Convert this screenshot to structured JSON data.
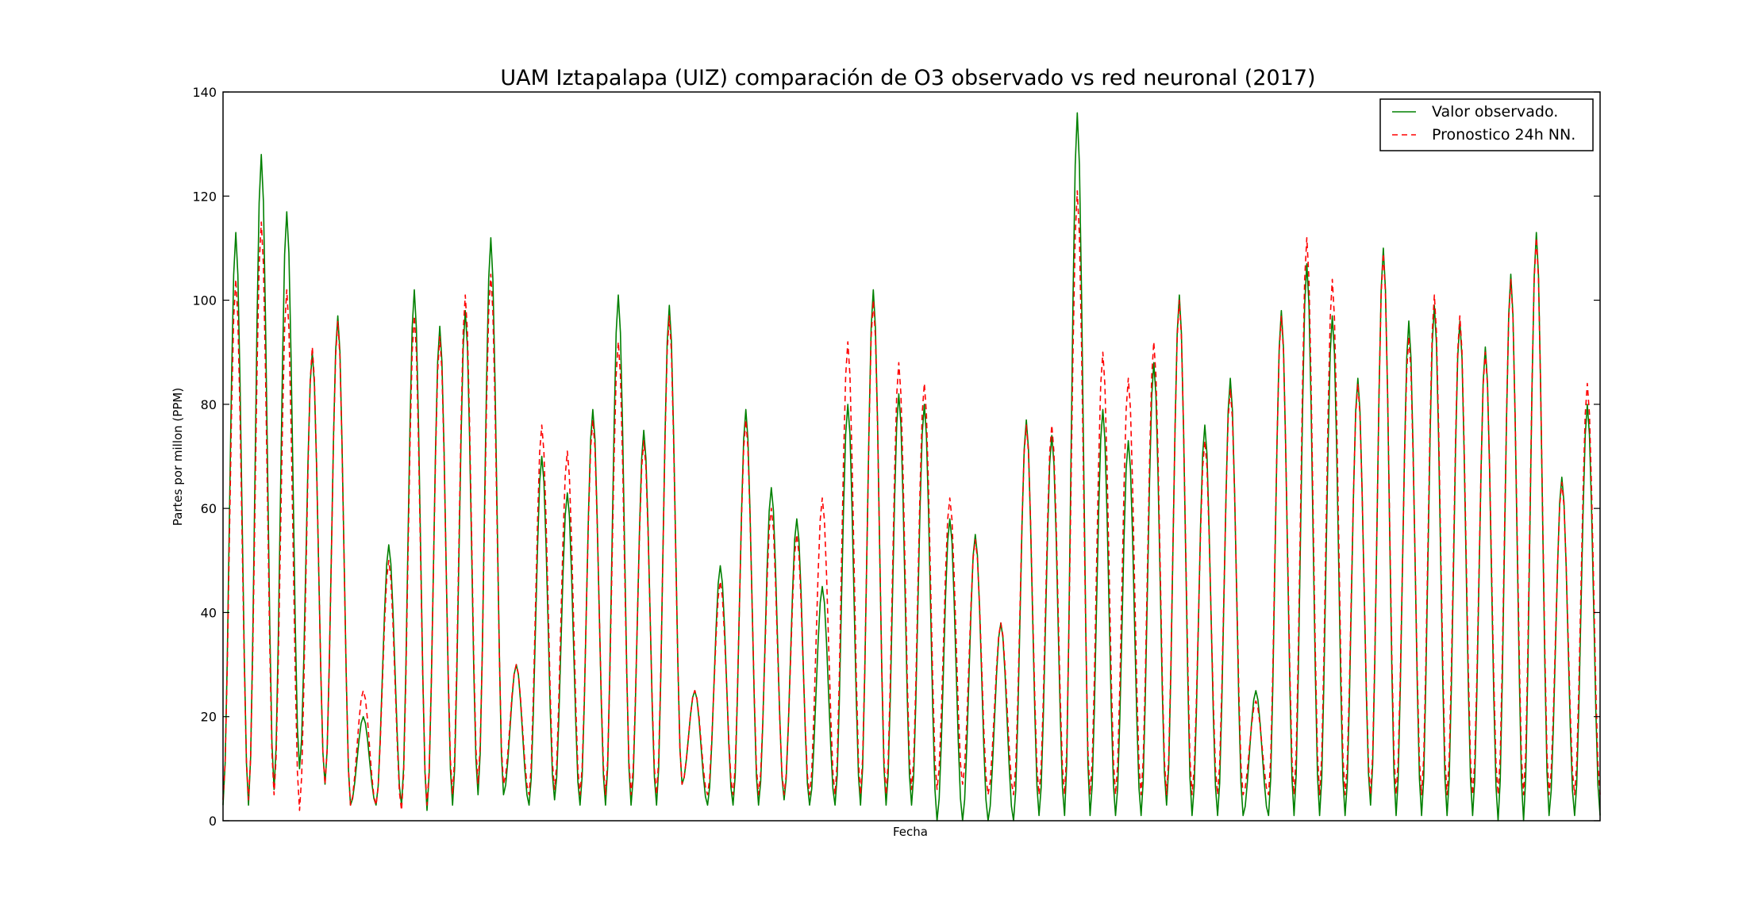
{
  "chart_data": {
    "type": "line",
    "title": "UAM Iztapalapa (UIZ) comparación de O3 observado vs red neuronal (2017)",
    "xlabel": "Fecha",
    "ylabel": "Partes por millon (PPM)",
    "ylim": [
      0,
      140
    ],
    "yticks": [
      0,
      20,
      40,
      60,
      80,
      100,
      120,
      140
    ],
    "xticks": [],
    "grid": false,
    "legend_position": "top-right",
    "legend": [
      "Valor observado.",
      "Pronostico 24h NN."
    ],
    "series": [
      {
        "name": "Valor observado.",
        "color": "#008000",
        "style": "solid",
        "peaks": [
          113,
          128,
          117,
          90,
          97,
          20,
          53,
          102,
          95,
          98,
          112,
          30,
          70,
          63,
          79,
          101,
          75,
          99,
          25,
          49,
          79,
          64,
          58,
          45,
          80,
          102,
          82,
          80,
          58,
          55,
          38,
          77,
          74,
          136,
          79,
          73,
          88,
          101,
          76,
          85,
          25,
          98,
          107,
          97,
          85,
          110,
          96,
          99,
          96,
          91,
          105,
          113,
          66,
          80
        ],
        "troughs": [
          3,
          3,
          6,
          10,
          7,
          3,
          3,
          3,
          2,
          3,
          5,
          5,
          3,
          4,
          3,
          3,
          3,
          3,
          7,
          3,
          3,
          3,
          4,
          3,
          3,
          3,
          3,
          3,
          0,
          0,
          0,
          0,
          1,
          1,
          1,
          1,
          1,
          3,
          1,
          1,
          1,
          1,
          1,
          1,
          1,
          3,
          1,
          1,
          1,
          1,
          0,
          0,
          1,
          1,
          1,
          0,
          1,
          3,
          1,
          30
        ]
      },
      {
        "name": "Pronostico 24h NN.",
        "color": "#ff0000",
        "style": "dashed",
        "peaks": [
          104,
          115,
          102,
          91,
          96,
          25,
          50,
          97,
          93,
          101,
          105,
          30,
          76,
          71,
          77,
          92,
          73,
          97,
          25,
          46,
          77,
          60,
          55,
          62,
          92,
          100,
          88,
          84,
          62,
          54,
          38,
          76,
          76,
          121,
          90,
          85,
          92,
          100,
          73,
          83,
          23,
          97,
          112,
          104,
          84,
          109,
          93,
          101,
          97,
          90,
          104,
          112,
          65,
          84
        ],
        "troughs": [
          4,
          4,
          5,
          2,
          7,
          3,
          3,
          2,
          3,
          5,
          7,
          7,
          5,
          6,
          5,
          5,
          5,
          5,
          7,
          5,
          5,
          5,
          5,
          5,
          5,
          5,
          5,
          6,
          6,
          7,
          5,
          5,
          5,
          5,
          5,
          5,
          5,
          5,
          5,
          5,
          5,
          5,
          5,
          5,
          5,
          5,
          5,
          5,
          5,
          5,
          5,
          5,
          5,
          5,
          5,
          5,
          5,
          5,
          5,
          12
        ]
      }
    ]
  }
}
